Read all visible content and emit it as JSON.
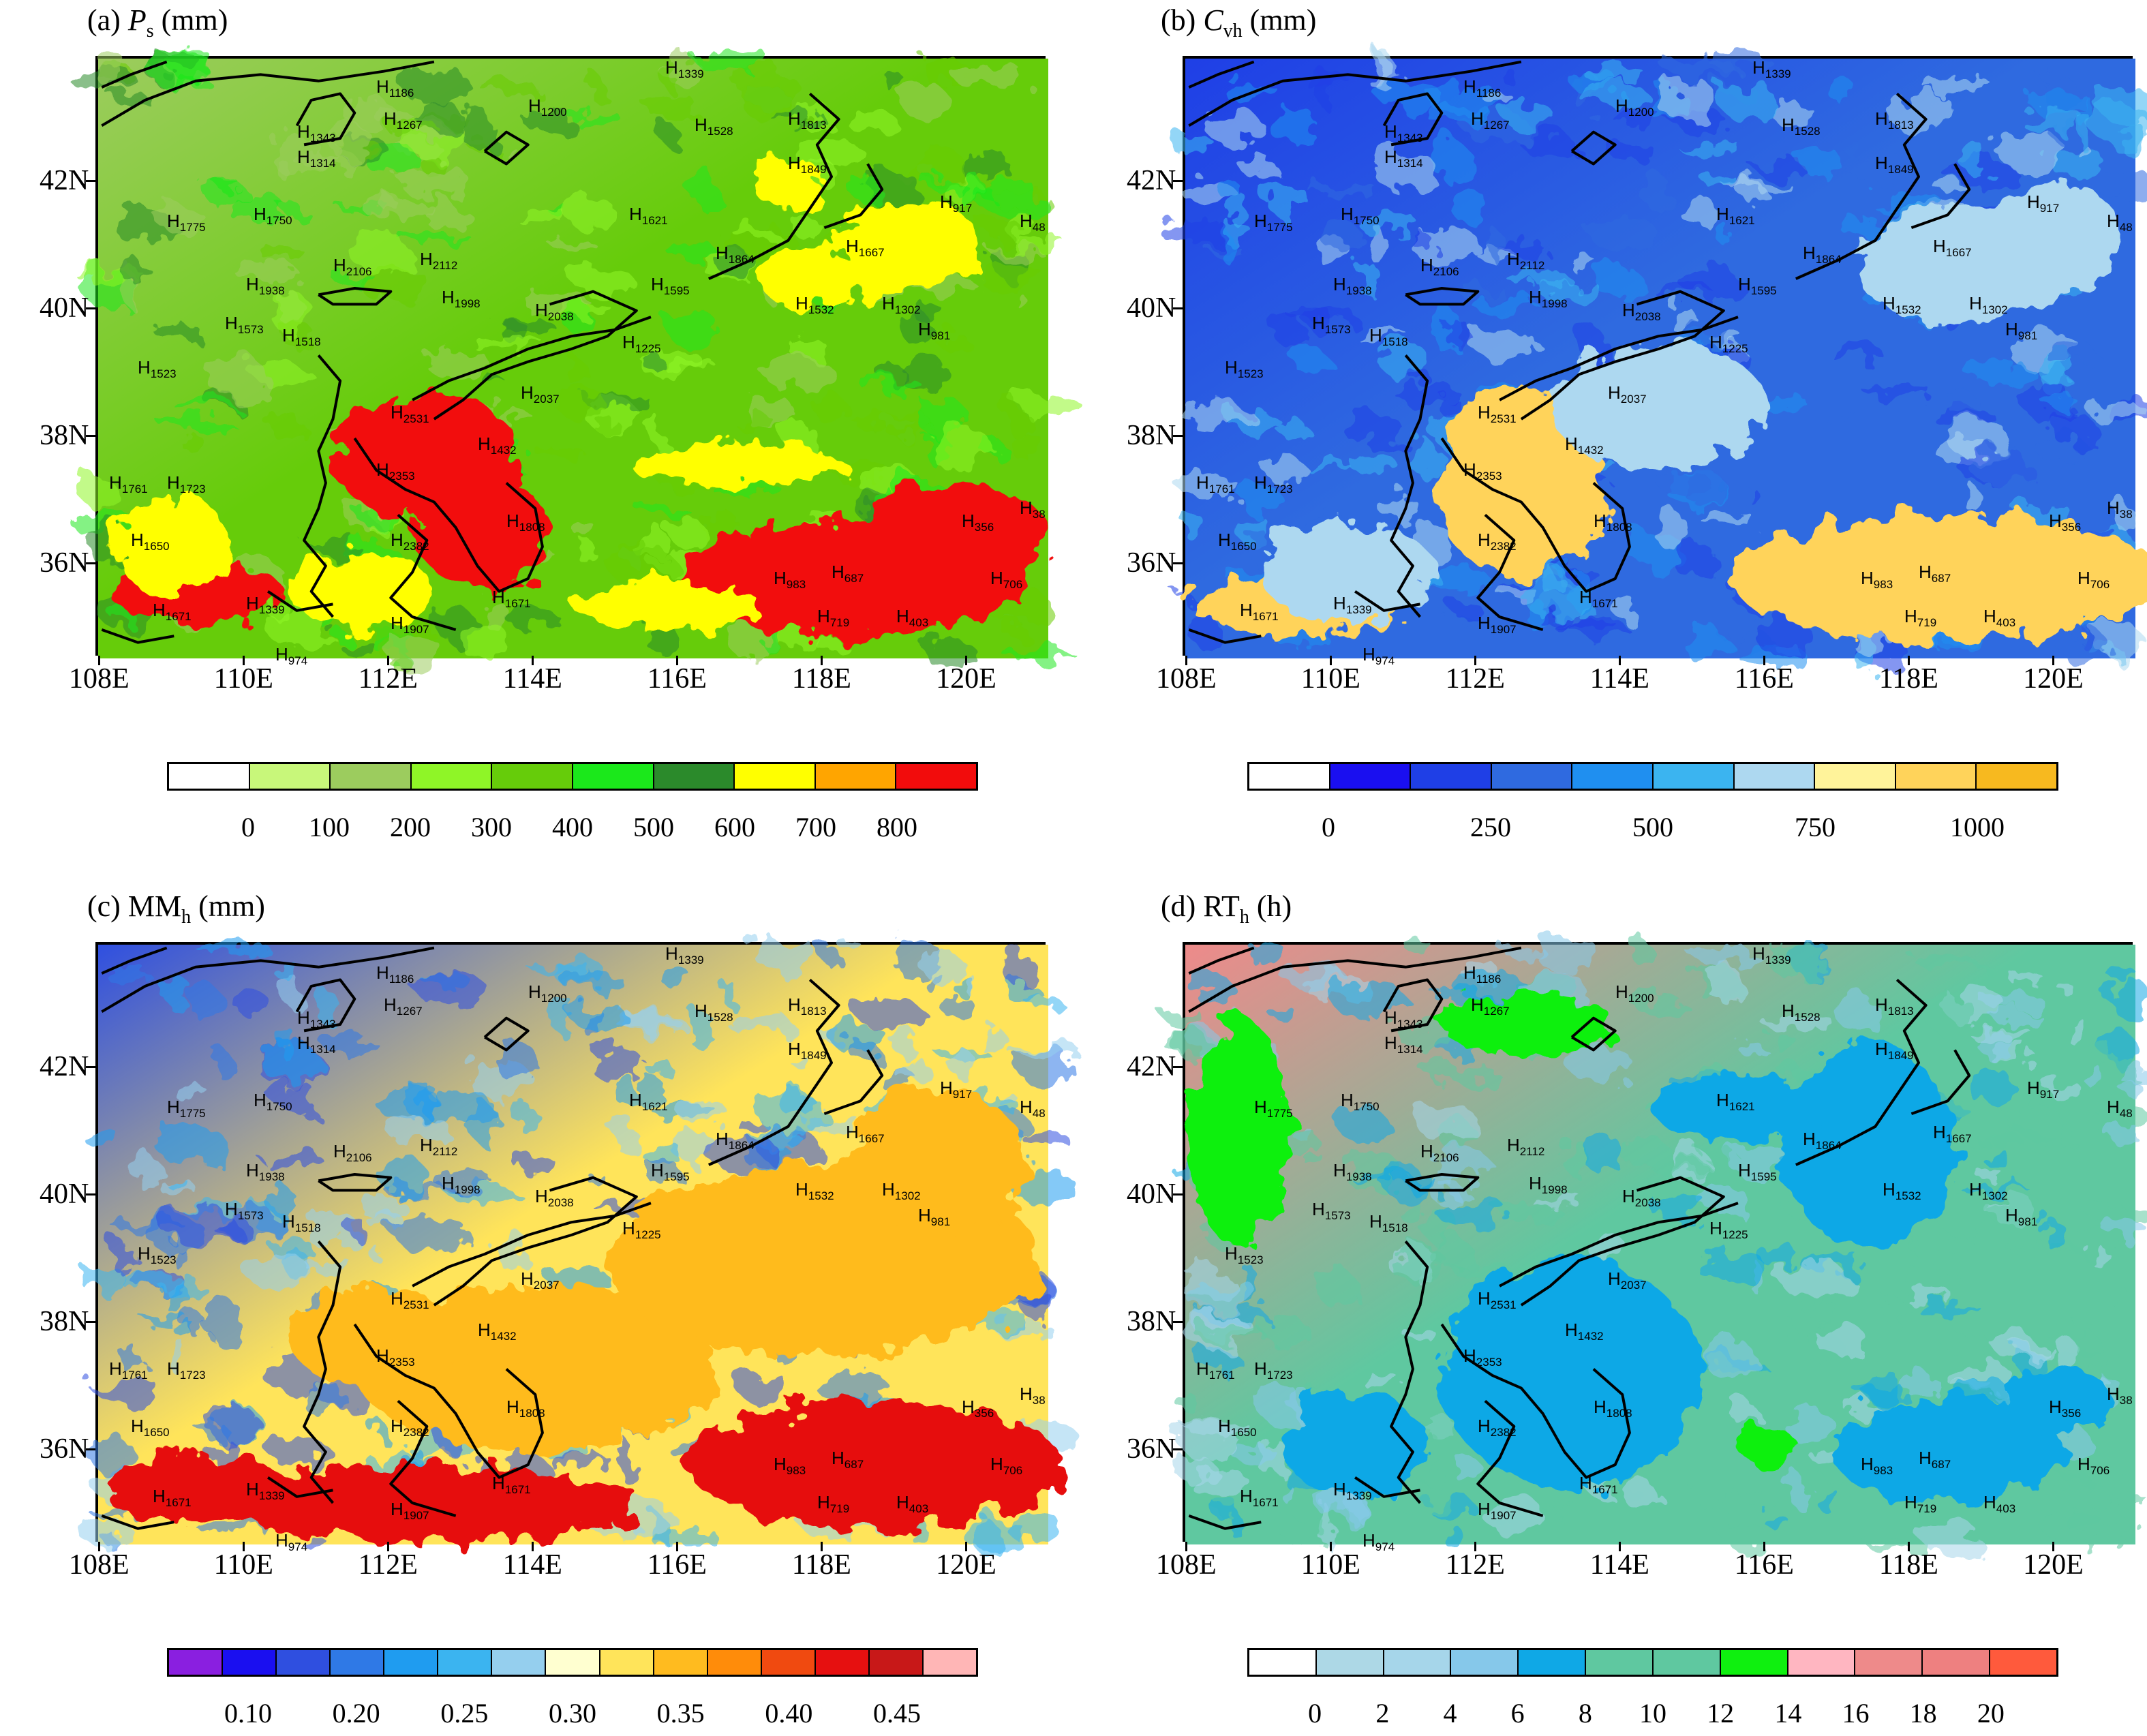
{
  "x_ticks": [
    "108E",
    "110E",
    "112E",
    "114E",
    "116E",
    "118E",
    "120E"
  ],
  "y_ticks": [
    "42N",
    "40N",
    "38N",
    "36N"
  ],
  "stations": [
    {
      "id": "1186",
      "lon": 111.8,
      "lat": 43.5
    },
    {
      "id": "1200",
      "lon": 113.9,
      "lat": 43.2
    },
    {
      "id": "1267",
      "lon": 111.9,
      "lat": 43.0
    },
    {
      "id": "1339",
      "lon": 115.8,
      "lat": 43.8
    },
    {
      "id": "1343",
      "lon": 110.7,
      "lat": 42.8
    },
    {
      "id": "1314",
      "lon": 110.7,
      "lat": 42.4
    },
    {
      "id": "1528",
      "lon": 116.2,
      "lat": 42.9
    },
    {
      "id": "1813",
      "lon": 117.5,
      "lat": 43.0
    },
    {
      "id": "1849",
      "lon": 117.5,
      "lat": 42.3
    },
    {
      "id": "917",
      "lon": 119.6,
      "lat": 41.7
    },
    {
      "id": "48",
      "lon": 120.7,
      "lat": 41.4
    },
    {
      "id": "1775",
      "lon": 108.9,
      "lat": 41.4
    },
    {
      "id": "1750",
      "lon": 110.1,
      "lat": 41.5
    },
    {
      "id": "1621",
      "lon": 115.3,
      "lat": 41.5
    },
    {
      "id": "1667",
      "lon": 118.3,
      "lat": 41.0
    },
    {
      "id": "1864",
      "lon": 116.5,
      "lat": 40.9
    },
    {
      "id": "2106",
      "lon": 111.2,
      "lat": 40.7
    },
    {
      "id": "2112",
      "lon": 112.4,
      "lat": 40.8
    },
    {
      "id": "1938",
      "lon": 110.0,
      "lat": 40.4
    },
    {
      "id": "1998",
      "lon": 112.7,
      "lat": 40.2
    },
    {
      "id": "2038",
      "lon": 114.0,
      "lat": 40.0
    },
    {
      "id": "1595",
      "lon": 115.6,
      "lat": 40.4
    },
    {
      "id": "1532",
      "lon": 117.6,
      "lat": 40.1
    },
    {
      "id": "1302",
      "lon": 118.8,
      "lat": 40.1
    },
    {
      "id": "981",
      "lon": 119.3,
      "lat": 39.7
    },
    {
      "id": "1573",
      "lon": 109.7,
      "lat": 39.8
    },
    {
      "id": "1518",
      "lon": 110.5,
      "lat": 39.6
    },
    {
      "id": "1523",
      "lon": 108.5,
      "lat": 39.1
    },
    {
      "id": "1225",
      "lon": 115.2,
      "lat": 39.5
    },
    {
      "id": "2531",
      "lon": 112.0,
      "lat": 38.4
    },
    {
      "id": "2037",
      "lon": 113.8,
      "lat": 38.7
    },
    {
      "id": "1432",
      "lon": 113.2,
      "lat": 37.9
    },
    {
      "id": "2353",
      "lon": 111.8,
      "lat": 37.5
    },
    {
      "id": "1761",
      "lon": 108.1,
      "lat": 37.3
    },
    {
      "id": "1723",
      "lon": 108.9,
      "lat": 37.3
    },
    {
      "id": "1808",
      "lon": 113.6,
      "lat": 36.7
    },
    {
      "id": "356",
      "lon": 119.9,
      "lat": 36.7
    },
    {
      "id": "38",
      "lon": 120.7,
      "lat": 36.9
    },
    {
      "id": "1650",
      "lon": 108.4,
      "lat": 36.4
    },
    {
      "id": "2382",
      "lon": 112.0,
      "lat": 36.4
    },
    {
      "id": "687",
      "lon": 118.1,
      "lat": 35.9
    },
    {
      "id": "983",
      "lon": 117.3,
      "lat": 35.8
    },
    {
      "id": "706",
      "lon": 120.3,
      "lat": 35.8
    },
    {
      "id": "1671",
      "lon": 113.4,
      "lat": 35.5
    },
    {
      "id": "1671",
      "lon": 108.7,
      "lat": 35.3
    },
    {
      "id": "1339",
      "lon": 110.0,
      "lat": 35.4
    },
    {
      "id": "1907",
      "lon": 112.0,
      "lat": 35.1
    },
    {
      "id": "719",
      "lon": 117.9,
      "lat": 35.2
    },
    {
      "id": "403",
      "lon": 119.0,
      "lat": 35.2
    },
    {
      "id": "974",
      "lon": 110.4,
      "lat": 34.6
    }
  ],
  "panels": [
    {
      "key": "a",
      "title_prefix": "(a) ",
      "var_main": "P",
      "var_sub": "s",
      "var_italic": true,
      "unit": " (mm)",
      "colorbar_colors": [
        "#ffffff",
        "#c8f77a",
        "#9ccc5e",
        "#8ff527",
        "#66cc0a",
        "#1be81b",
        "#2b8a2b",
        "#ffff00",
        "#ffa500",
        "#f20c0c"
      ],
      "colorbar_labels": [
        "0",
        "100",
        "200",
        "300",
        "400",
        "500",
        "600",
        "700",
        "800"
      ],
      "bg_color": "#66cc0a",
      "bg_top_left": "#9ccc5e",
      "hot_color": "#f20c0c",
      "warm_color": "#ffff00"
    },
    {
      "key": "b",
      "title_prefix": "(b) ",
      "var_main": "C",
      "var_sub": "vh",
      "var_italic": true,
      "unit": " (mm)",
      "colorbar_colors": [
        "#ffffff",
        "#1a0ff0",
        "#1f3fe6",
        "#2f6ae0",
        "#1f8ff0",
        "#3bb4f0",
        "#add8f0",
        "#fff39a",
        "#ffd35a",
        "#f7b91f"
      ],
      "colorbar_labels": [
        "0",
        "250",
        "500",
        "750",
        "1000"
      ],
      "bg_color": "#2f6ae0",
      "bg_top_left": "#1f3fe6",
      "hot_color": "#ffd35a",
      "warm_color": "#add8f0"
    },
    {
      "key": "c",
      "title_prefix": "(c) ",
      "var_main": "MM",
      "var_sub": "h",
      "var_italic": false,
      "unit": " (mm)",
      "colorbar_colors": [
        "#8a1fe0",
        "#1a0ff0",
        "#2f4fe0",
        "#2f79e6",
        "#1f9cf0",
        "#3bb4f0",
        "#95cfee",
        "#ffffd0",
        "#ffe45a",
        "#ffbb1f",
        "#ff8c0a",
        "#f04a10",
        "#e61010",
        "#c81818",
        "#ffb6b6"
      ],
      "colorbar_labels": [
        "0.10",
        "0.20",
        "0.25",
        "0.30",
        "0.35",
        "0.40",
        "0.45"
      ],
      "bg_color": "#ffe45a",
      "bg_top_left": "#2f4fe0",
      "hot_color": "#e61010",
      "warm_color": "#ffbb1f"
    },
    {
      "key": "d",
      "title_prefix": "(d) ",
      "var_main": "RT",
      "var_sub": "h",
      "var_italic": false,
      "unit": " (h)",
      "colorbar_colors": [
        "#ffffff",
        "#add8e6",
        "#a6d6ea",
        "#86c8ea",
        "#0fa8e6",
        "#5fc8a0",
        "#5fc8a0",
        "#0ff00f",
        "#ffb6c1",
        "#ee8a8a",
        "#ee8080",
        "#ff5a3c"
      ],
      "colorbar_labels": [
        "0",
        "2",
        "4",
        "6",
        "8",
        "10",
        "12",
        "14",
        "16",
        "18",
        "20"
      ],
      "bg_color": "#5fc8a0",
      "bg_top_left": "#ee8a8a",
      "hot_color": "#0fa8e6",
      "warm_color": "#0ff00f"
    }
  ]
}
